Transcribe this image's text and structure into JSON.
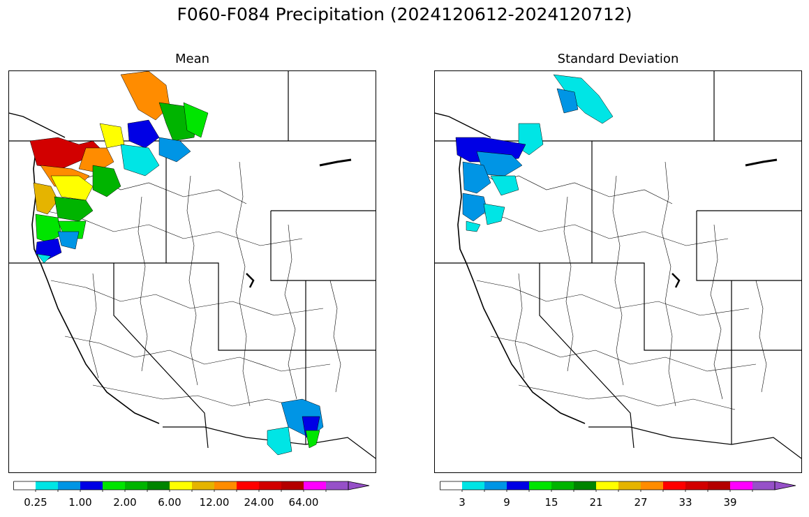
{
  "title": "F060-F084 Precipitation (2024120612-2024120712)",
  "panels": {
    "mean": {
      "title": "Mean"
    },
    "std": {
      "title": "Standard Deviation"
    }
  },
  "colormap": {
    "colors": [
      "#ffffff",
      "#00e5e5",
      "#0095e5",
      "#0000e5",
      "#00e500",
      "#00b400",
      "#008400",
      "#ffff00",
      "#e5b400",
      "#ff8c00",
      "#ff0000",
      "#d20000",
      "#b40000",
      "#ff00ff",
      "#9650c8"
    ],
    "extend": "max"
  },
  "colorbars": {
    "mean": {
      "tick_labels": [
        "0.25",
        "1.00",
        "2.00",
        "6.00",
        "12.00",
        "24.00",
        "64.00"
      ]
    },
    "std": {
      "tick_labels": [
        "3",
        "9",
        "15",
        "21",
        "27",
        "33",
        "39"
      ]
    }
  }
}
